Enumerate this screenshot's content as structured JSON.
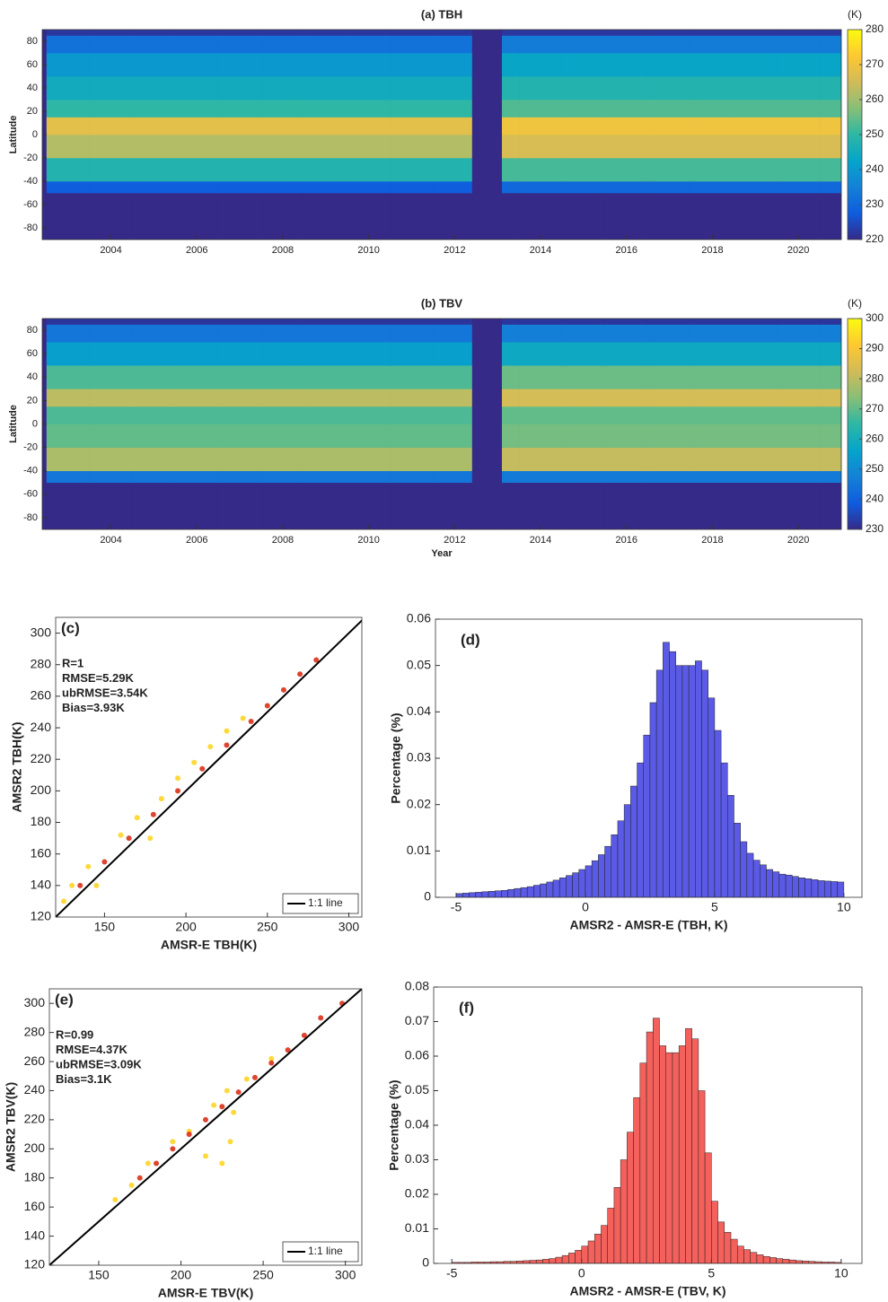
{
  "chart_data": [
    {
      "type": "heatmap",
      "title": "(a) TBH",
      "ylabel": "Latitude",
      "colorbar_label": "(K)",
      "xbins": [
        2002.5,
        2003.5,
        2004.5,
        2005.5,
        2006.5,
        2007.5,
        2008.5,
        2009.5,
        2010.5,
        2011.5,
        2012.4,
        2013.1,
        2013.5,
        2014.5,
        2015.5,
        2016.5,
        2017.5,
        2018.5,
        2019.5,
        2020.5,
        2021
      ],
      "ybins": [
        -90,
        -50,
        -40,
        -20,
        0,
        15,
        30,
        50,
        70,
        85,
        90
      ],
      "z": [
        [
          220,
          220,
          220,
          220,
          220,
          220,
          220,
          220,
          220,
          220,
          null,
          220,
          220,
          220,
          220,
          220,
          220,
          220,
          220,
          220
        ],
        [
          228,
          228,
          228,
          228,
          228,
          228,
          228,
          228,
          228,
          228,
          null,
          230,
          230,
          230,
          230,
          230,
          230,
          230,
          230,
          230
        ],
        [
          248,
          248,
          248,
          248,
          248,
          248,
          248,
          248,
          248,
          248,
          null,
          252,
          252,
          252,
          252,
          252,
          252,
          252,
          252,
          252
        ],
        [
          262,
          262,
          262,
          262,
          262,
          262,
          262,
          262,
          262,
          262,
          null,
          266,
          266,
          266,
          266,
          266,
          266,
          266,
          266,
          266
        ],
        [
          268,
          268,
          268,
          268,
          268,
          268,
          268,
          268,
          268,
          268,
          null,
          270,
          270,
          270,
          270,
          270,
          270,
          270,
          270,
          270
        ],
        [
          250,
          250,
          250,
          250,
          250,
          250,
          250,
          250,
          250,
          250,
          null,
          253,
          253,
          253,
          253,
          253,
          253,
          253,
          253,
          253
        ],
        [
          245,
          245,
          245,
          245,
          245,
          245,
          245,
          245,
          245,
          245,
          null,
          248,
          248,
          248,
          248,
          248,
          248,
          248,
          248,
          248
        ],
        [
          240,
          240,
          240,
          240,
          240,
          240,
          240,
          240,
          240,
          240,
          null,
          243,
          243,
          243,
          243,
          243,
          243,
          243,
          243,
          243
        ],
        [
          232,
          232,
          232,
          232,
          232,
          232,
          232,
          232,
          232,
          232,
          null,
          234,
          234,
          234,
          234,
          234,
          234,
          234,
          234,
          234
        ],
        [
          222,
          222,
          222,
          222,
          222,
          222,
          222,
          222,
          222,
          222,
          null,
          222,
          222,
          222,
          222,
          222,
          222,
          222,
          222,
          222
        ]
      ],
      "xlim": [
        2002.4,
        2021
      ],
      "ylim": [
        -90,
        90
      ],
      "xticks": [
        2004,
        2006,
        2008,
        2010,
        2012,
        2014,
        2016,
        2018,
        2020
      ],
      "yticks": [
        -80,
        -60,
        -40,
        -20,
        0,
        20,
        40,
        60,
        80
      ],
      "zlim": [
        220,
        280
      ],
      "zticks": [
        220,
        230,
        240,
        250,
        260,
        270,
        280
      ],
      "colorscale": [
        "#352a87",
        "#0f5cdd",
        "#1481d6",
        "#06a4ca",
        "#2eb7a4",
        "#87bf77",
        "#d1bb59",
        "#fec832",
        "#f9fb0e"
      ]
    },
    {
      "type": "heatmap",
      "title": "(b) TBV",
      "ylabel": "Latitude",
      "xlabel": "Year",
      "colorbar_label": "(K)",
      "xbins": [
        2002.5,
        2003.5,
        2004.5,
        2005.5,
        2006.5,
        2007.5,
        2008.5,
        2009.5,
        2010.5,
        2011.5,
        2012.4,
        2013.1,
        2013.5,
        2014.5,
        2015.5,
        2016.5,
        2017.5,
        2018.5,
        2019.5,
        2020.5,
        2021
      ],
      "ybins": [
        -90,
        -50,
        -40,
        -20,
        0,
        15,
        30,
        50,
        70,
        85,
        90
      ],
      "z": [
        [
          230,
          230,
          230,
          230,
          230,
          230,
          230,
          230,
          230,
          230,
          null,
          230,
          230,
          230,
          230,
          230,
          230,
          230,
          230,
          230
        ],
        [
          245,
          245,
          245,
          245,
          245,
          245,
          245,
          245,
          245,
          245,
          null,
          246,
          246,
          246,
          246,
          246,
          246,
          246,
          246,
          246
        ],
        [
          278,
          278,
          278,
          278,
          278,
          278,
          278,
          278,
          278,
          278,
          null,
          281,
          281,
          281,
          281,
          281,
          281,
          281,
          281,
          281
        ],
        [
          270,
          270,
          270,
          270,
          270,
          270,
          270,
          270,
          270,
          270,
          null,
          272,
          272,
          272,
          272,
          272,
          272,
          272,
          272,
          272
        ],
        [
          268,
          268,
          268,
          268,
          268,
          268,
          268,
          268,
          268,
          268,
          null,
          270,
          270,
          270,
          270,
          270,
          270,
          270,
          270,
          270
        ],
        [
          280,
          280,
          280,
          280,
          280,
          280,
          280,
          280,
          280,
          280,
          null,
          283,
          283,
          283,
          283,
          283,
          283,
          283,
          283,
          283
        ],
        [
          268,
          268,
          268,
          268,
          268,
          268,
          268,
          268,
          268,
          268,
          null,
          271,
          271,
          271,
          271,
          271,
          271,
          271,
          271,
          271
        ],
        [
          255,
          255,
          255,
          255,
          255,
          255,
          255,
          255,
          255,
          255,
          null,
          258,
          258,
          258,
          258,
          258,
          258,
          258,
          258,
          258
        ],
        [
          245,
          245,
          245,
          245,
          245,
          245,
          245,
          245,
          245,
          245,
          null,
          247,
          247,
          247,
          247,
          247,
          247,
          247,
          247,
          247
        ],
        [
          232,
          232,
          232,
          232,
          232,
          232,
          232,
          232,
          232,
          232,
          null,
          232,
          232,
          232,
          232,
          232,
          232,
          232,
          232,
          232
        ]
      ],
      "xlim": [
        2002.4,
        2021
      ],
      "ylim": [
        -90,
        90
      ],
      "xticks": [
        2004,
        2006,
        2008,
        2010,
        2012,
        2014,
        2016,
        2018,
        2020
      ],
      "yticks": [
        -80,
        -60,
        -40,
        -20,
        0,
        20,
        40,
        60,
        80
      ],
      "zlim": [
        230,
        300
      ],
      "zticks": [
        230,
        240,
        250,
        260,
        270,
        280,
        290,
        300
      ],
      "colorscale": [
        "#352a87",
        "#0f5cdd",
        "#1481d6",
        "#06a4ca",
        "#2eb7a4",
        "#87bf77",
        "#d1bb59",
        "#fec832",
        "#f9fb0e"
      ]
    },
    {
      "type": "scatter",
      "title": "(c)",
      "xlabel": "AMSR-E TBH(K)",
      "ylabel": "AMSR2 TBH(K)",
      "annotations": [
        "R=1",
        "RMSE=5.29K",
        "ubRMSE=3.54K",
        "Bias=3.93K"
      ],
      "xlim": [
        120,
        308
      ],
      "ylim": [
        120,
        310
      ],
      "xticks": [
        150,
        200,
        250,
        300
      ],
      "yticks": [
        120,
        140,
        160,
        180,
        200,
        220,
        240,
        260,
        280,
        300
      ],
      "legend": "lower right",
      "series": [
        {
          "color": "#ffd21a",
          "x": [
            125,
            130,
            140,
            145,
            160,
            170,
            178,
            185,
            195,
            205,
            215,
            225,
            235
          ],
          "y": [
            130,
            140,
            152,
            140,
            172,
            183,
            170,
            195,
            208,
            218,
            228,
            238,
            246
          ]
        },
        {
          "color": "#d8240c",
          "x": [
            135,
            150,
            165,
            180,
            195,
            210,
            225,
            240,
            250,
            260,
            270,
            280
          ],
          "y": [
            140,
            155,
            170,
            185,
            200,
            214,
            229,
            244,
            254,
            264,
            274,
            283
          ]
        },
        {
          "name": "1:1 line",
          "color": "#000000",
          "line": true,
          "x": [
            120,
            310
          ],
          "y": [
            120,
            310
          ]
        }
      ]
    },
    {
      "type": "histogram",
      "title": "(d)",
      "xlabel": "AMSR2 - AMSR-E (TBH, K)",
      "ylabel": "Percentage (%)",
      "color": "#5a5ae6",
      "bins": [
        -5,
        -4.75,
        -4.5,
        -4.25,
        -4,
        -3.75,
        -3.5,
        -3.25,
        -3,
        -2.75,
        -2.5,
        -2.25,
        -2,
        -1.75,
        -1.5,
        -1.25,
        -1,
        -0.75,
        -0.5,
        -0.25,
        0,
        0.25,
        0.5,
        0.75,
        1,
        1.25,
        1.5,
        1.75,
        2,
        2.25,
        2.5,
        2.75,
        3,
        3.25,
        3.5,
        3.75,
        4,
        4.25,
        4.5,
        4.75,
        5,
        5.25,
        5.5,
        5.75,
        6,
        6.25,
        6.5,
        6.75,
        7,
        7.25,
        7.5,
        7.75,
        8,
        8.25,
        8.5,
        8.75,
        9,
        9.25,
        9.5,
        9.75,
        10
      ],
      "values": [
        0.0008,
        0.0009,
        0.001,
        0.0011,
        0.0012,
        0.0013,
        0.0014,
        0.0015,
        0.0017,
        0.0019,
        0.0021,
        0.0023,
        0.0026,
        0.0029,
        0.0033,
        0.0037,
        0.0042,
        0.0047,
        0.0053,
        0.006,
        0.0068,
        0.0079,
        0.0092,
        0.011,
        0.0135,
        0.0165,
        0.02,
        0.024,
        0.029,
        0.035,
        0.042,
        0.049,
        0.055,
        0.053,
        0.05,
        0.05,
        0.05,
        0.051,
        0.049,
        0.043,
        0.036,
        0.029,
        0.022,
        0.016,
        0.012,
        0.0095,
        0.008,
        0.007,
        0.006,
        0.0055,
        0.005,
        0.0048,
        0.0045,
        0.0042,
        0.004,
        0.0038,
        0.0036,
        0.0035,
        0.0034,
        0.0033
      ],
      "xlim": [
        -5.8,
        10.7
      ],
      "ylim": [
        0,
        0.06
      ],
      "xticks": [
        -5,
        0,
        5,
        10
      ],
      "yticks": [
        0,
        0.01,
        0.02,
        0.03,
        0.04,
        0.05,
        0.06
      ]
    },
    {
      "type": "scatter",
      "title": "(e)",
      "xlabel": "AMSR-E TBV(K)",
      "ylabel": "AMSR2 TBV(K)",
      "annotations": [
        "R=0.99",
        "RMSE=4.37K",
        "ubRMSE=3.09K",
        "Bias=3.1K"
      ],
      "xlim": [
        120,
        310
      ],
      "ylim": [
        120,
        310
      ],
      "xticks": [
        150,
        200,
        250,
        300
      ],
      "yticks": [
        120,
        140,
        160,
        180,
        200,
        220,
        240,
        260,
        280,
        300
      ],
      "legend": "lower right",
      "series": [
        {
          "color": "#ffd21a",
          "x": [
            160,
            170,
            180,
            195,
            205,
            215,
            225,
            230,
            232,
            228,
            220,
            240,
            255
          ],
          "y": [
            165,
            175,
            190,
            205,
            212,
            195,
            190,
            205,
            225,
            240,
            230,
            248,
            262
          ]
        },
        {
          "color": "#d8240c",
          "x": [
            175,
            185,
            195,
            205,
            215,
            225,
            235,
            245,
            255,
            265,
            275,
            285,
            298
          ],
          "y": [
            180,
            190,
            200,
            210,
            220,
            229,
            239,
            249,
            259,
            268,
            278,
            290,
            300
          ]
        },
        {
          "name": "1:1 line",
          "color": "#000000",
          "line": true,
          "x": [
            120,
            310
          ],
          "y": [
            120,
            310
          ]
        }
      ]
    },
    {
      "type": "histogram",
      "title": "(f)",
      "xlabel": "AMSR2 - AMSR-E (TBV, K)",
      "ylabel": "Percentage (%)",
      "color": "#f4605c",
      "bins": [
        -5,
        -4.75,
        -4.5,
        -4.25,
        -4,
        -3.75,
        -3.5,
        -3.25,
        -3,
        -2.75,
        -2.5,
        -2.25,
        -2,
        -1.75,
        -1.5,
        -1.25,
        -1,
        -0.75,
        -0.5,
        -0.25,
        0,
        0.25,
        0.5,
        0.75,
        1,
        1.25,
        1.5,
        1.75,
        2,
        2.25,
        2.5,
        2.75,
        3,
        3.25,
        3.5,
        3.75,
        4,
        4.25,
        4.5,
        4.75,
        5,
        5.25,
        5.5,
        5.75,
        6,
        6.25,
        6.5,
        6.75,
        7,
        7.25,
        7.5,
        7.75,
        8,
        8.25,
        8.5,
        8.75,
        9,
        9.25,
        9.5,
        9.75,
        10
      ],
      "values": [
        0.0003,
        0.0003,
        0.0003,
        0.0004,
        0.0004,
        0.0004,
        0.0005,
        0.0005,
        0.0006,
        0.0006,
        0.0007,
        0.0008,
        0.0009,
        0.001,
        0.0012,
        0.0014,
        0.0018,
        0.0023,
        0.003,
        0.0038,
        0.005,
        0.0065,
        0.0085,
        0.011,
        0.016,
        0.022,
        0.03,
        0.038,
        0.048,
        0.058,
        0.067,
        0.071,
        0.063,
        0.061,
        0.061,
        0.063,
        0.068,
        0.065,
        0.05,
        0.032,
        0.018,
        0.012,
        0.009,
        0.007,
        0.005,
        0.004,
        0.0032,
        0.0025,
        0.002,
        0.0017,
        0.0014,
        0.0012,
        0.001,
        0.0008,
        0.0007,
        0.0006,
        0.0005,
        0.0004,
        0.0004,
        0.0003
      ],
      "xlim": [
        -5.7,
        10.8
      ],
      "ylim": [
        0,
        0.08
      ],
      "xticks": [
        -5,
        0,
        5,
        10
      ],
      "yticks": [
        0,
        0.01,
        0.02,
        0.03,
        0.04,
        0.05,
        0.06,
        0.07,
        0.08
      ]
    }
  ]
}
